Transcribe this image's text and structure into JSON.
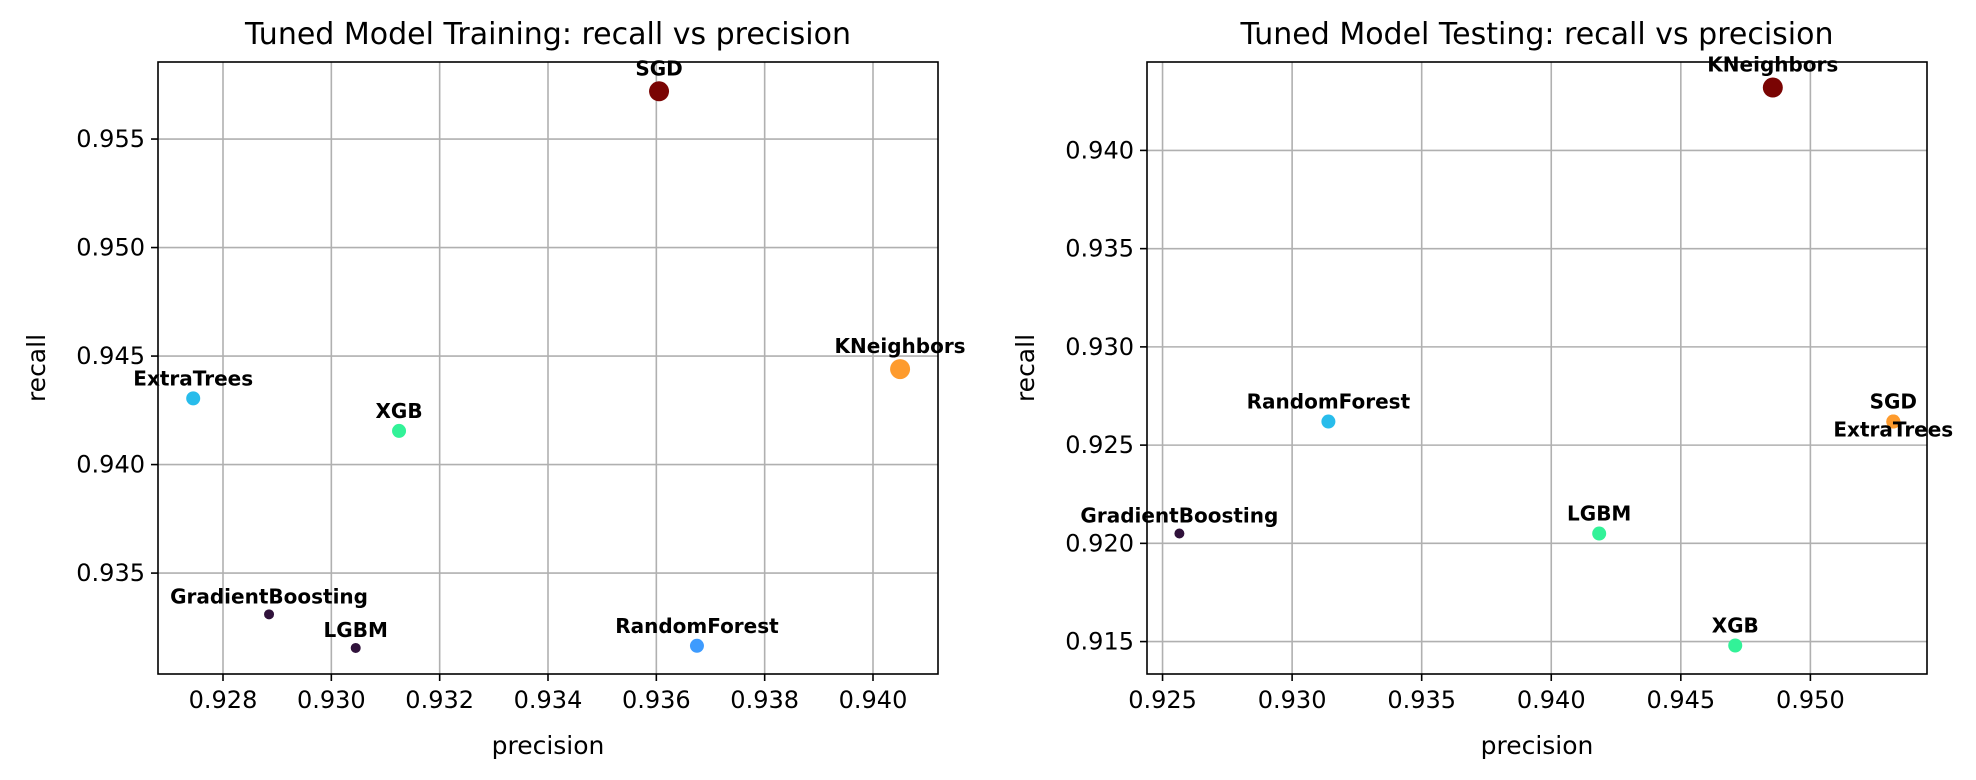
{
  "chart_data": [
    {
      "type": "scatter",
      "title": "Tuned Model Training: recall vs precision",
      "xlabel": "precision",
      "ylabel": "recall",
      "xlim": [
        0.9268,
        0.9412
      ],
      "ylim": [
        0.93035,
        0.95855
      ],
      "xticks": [
        0.928,
        0.93,
        0.932,
        0.934,
        0.936,
        0.938,
        0.94
      ],
      "xtick_labels": [
        "0.928",
        "0.930",
        "0.932",
        "0.934",
        "0.936",
        "0.938",
        "0.940"
      ],
      "yticks": [
        0.935,
        0.94,
        0.945,
        0.95,
        0.955
      ],
      "ytick_labels": [
        "0.935",
        "0.940",
        "0.945",
        "0.950",
        "0.955"
      ],
      "grid": true,
      "points": [
        {
          "label": "SGD",
          "x": 0.93605,
          "y": 0.9572,
          "color": "#7a0403",
          "size": "large"
        },
        {
          "label": "KNeighbors",
          "x": 0.9405,
          "y": 0.9444,
          "color": "#fe9b2d",
          "size": "large"
        },
        {
          "label": "ExtraTrees",
          "x": 0.92745,
          "y": 0.94305,
          "color": "#28bceb",
          "size": "medium"
        },
        {
          "label": "XGB",
          "x": 0.93125,
          "y": 0.94155,
          "color": "#32f298",
          "size": "medium"
        },
        {
          "label": "GradientBoosting",
          "x": 0.92885,
          "y": 0.9331,
          "color": "#30123b",
          "size": "small"
        },
        {
          "label": "LGBM",
          "x": 0.93045,
          "y": 0.93155,
          "color": "#30123b",
          "size": "small"
        },
        {
          "label": "RandomForest",
          "x": 0.93675,
          "y": 0.93165,
          "color": "#3e9bfe",
          "size": "medium"
        }
      ]
    },
    {
      "type": "scatter",
      "title": "Tuned Model Testing: recall vs precision",
      "xlabel": "precision",
      "ylabel": "recall",
      "xlim": [
        0.9244,
        0.9545
      ],
      "ylim": [
        0.91335,
        0.9445
      ],
      "xticks": [
        0.925,
        0.93,
        0.935,
        0.94,
        0.945,
        0.95
      ],
      "xtick_labels": [
        "0.925",
        "0.930",
        "0.935",
        "0.940",
        "0.945",
        "0.950"
      ],
      "yticks": [
        0.915,
        0.92,
        0.925,
        0.93,
        0.935,
        0.94
      ],
      "ytick_labels": [
        "0.915",
        "0.920",
        "0.925",
        "0.930",
        "0.935",
        "0.940"
      ],
      "grid": true,
      "points": [
        {
          "label": "KNeighbors",
          "x": 0.94855,
          "y": 0.9432,
          "color": "#7a0403",
          "size": "large"
        },
        {
          "label": "SGD",
          "x": 0.9532,
          "y": 0.9262,
          "color": "#fe9b2d",
          "size": "medium"
        },
        {
          "label": "ExtraTrees",
          "x": 0.9532,
          "y": 0.9262,
          "color": "#fe9b2d",
          "size": "medium",
          "label_below": true
        },
        {
          "label": "RandomForest",
          "x": 0.9314,
          "y": 0.9262,
          "color": "#28bceb",
          "size": "medium"
        },
        {
          "label": "GradientBoosting",
          "x": 0.92565,
          "y": 0.9205,
          "color": "#30123b",
          "size": "small"
        },
        {
          "label": "LGBM",
          "x": 0.94185,
          "y": 0.9205,
          "color": "#32f298",
          "size": "medium"
        },
        {
          "label": "XGB",
          "x": 0.9471,
          "y": 0.9148,
          "color": "#32f298",
          "size": "medium"
        }
      ]
    }
  ]
}
